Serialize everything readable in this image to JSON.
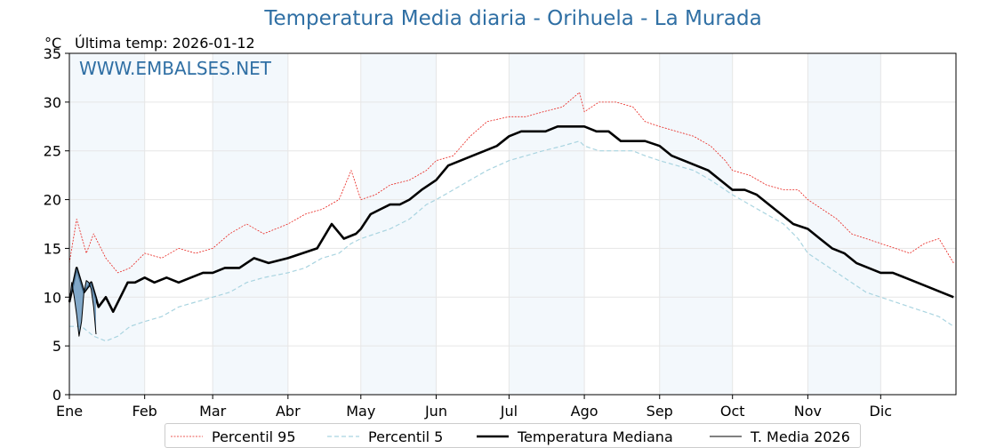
{
  "header": {
    "title": "Temperatura Media diaria - Orihuela - La Murada",
    "unit": "°C",
    "last_temp": "Última temp: 2026-01-12",
    "watermark": "WWW.EMBALSES.NET"
  },
  "chart_data": {
    "type": "line",
    "title": "Temperatura Media diaria - Orihuela - La Murada",
    "ylabel": "°C",
    "ylim": [
      0,
      35
    ],
    "y_ticks": [
      0,
      5,
      10,
      15,
      20,
      25,
      30,
      35
    ],
    "x_days": 365,
    "x_tick_day": [
      0,
      31,
      59,
      90,
      120,
      151,
      181,
      212,
      243,
      273,
      304,
      334
    ],
    "x_tick_labels": [
      "Ene",
      "Feb",
      "Mar",
      "Abr",
      "May",
      "Jun",
      "Jul",
      "Ago",
      "Sep",
      "Oct",
      "Nov",
      "Dic"
    ],
    "shaded_months": [
      "Ene",
      "Mar",
      "May",
      "Jul",
      "Sep",
      "Nov"
    ],
    "grid": true,
    "legend_position": "bottom",
    "series": [
      {
        "name": "Percentil 95",
        "color": "#e8221c",
        "style": "dotted",
        "x": [
          0,
          3,
          7,
          10,
          15,
          20,
          25,
          31,
          38,
          45,
          52,
          59,
          66,
          73,
          80,
          90,
          97,
          104,
          111,
          116,
          120,
          126,
          132,
          140,
          147,
          151,
          158,
          165,
          172,
          181,
          188,
          195,
          203,
          210,
          212,
          218,
          225,
          232,
          237,
          243,
          250,
          257,
          264,
          270,
          273,
          280,
          287,
          294,
          300,
          304,
          310,
          316,
          322,
          328,
          334,
          340,
          346,
          352,
          358,
          364
        ],
        "y": [
          13.5,
          18,
          14.5,
          16.5,
          14,
          12.5,
          13,
          14.5,
          14,
          15,
          14.5,
          15,
          16.5,
          17.5,
          16.5,
          17.5,
          18.5,
          19,
          20,
          23,
          20,
          20.5,
          21.5,
          22,
          23,
          24,
          24.5,
          26.5,
          28,
          28.5,
          28.5,
          29,
          29.5,
          31,
          29,
          30,
          30,
          29.5,
          28,
          27.5,
          27,
          26.5,
          25.5,
          24,
          23,
          22.5,
          21.5,
          21,
          21,
          20,
          19,
          18,
          16.5,
          16,
          15.5,
          15,
          14.5,
          15.5,
          16,
          13.5
        ]
      },
      {
        "name": "Percentil 5",
        "color": "#a9d4e0",
        "style": "dashed",
        "x": [
          0,
          5,
          10,
          15,
          20,
          25,
          31,
          38,
          45,
          52,
          59,
          66,
          73,
          80,
          90,
          97,
          104,
          111,
          116,
          120,
          126,
          132,
          140,
          147,
          151,
          158,
          165,
          172,
          181,
          188,
          195,
          203,
          210,
          212,
          218,
          225,
          232,
          237,
          243,
          250,
          257,
          264,
          270,
          273,
          280,
          287,
          294,
          300,
          304,
          310,
          316,
          322,
          328,
          334,
          340,
          346,
          352,
          358,
          364
        ],
        "y": [
          7,
          7,
          6,
          5.5,
          6,
          7,
          7.5,
          8,
          9,
          9.5,
          10,
          10.5,
          11.5,
          12,
          12.5,
          13,
          14,
          14.5,
          15.5,
          16,
          16.5,
          17,
          18,
          19.5,
          20,
          21,
          22,
          23,
          24,
          24.5,
          25,
          25.5,
          26,
          25.5,
          25,
          25,
          25,
          24.5,
          24,
          23.5,
          23,
          22,
          21,
          20.5,
          19.5,
          18.5,
          17.5,
          16,
          14.5,
          13.5,
          12.5,
          11.5,
          10.5,
          10,
          9.5,
          9,
          8.5,
          8,
          7
        ]
      },
      {
        "name": "Temperatura Mediana",
        "color": "#000000",
        "style": "solid-thick",
        "x": [
          0,
          3,
          6,
          9,
          12,
          15,
          18,
          21,
          24,
          27,
          31,
          35,
          40,
          45,
          50,
          55,
          59,
          64,
          70,
          76,
          82,
          90,
          96,
          102,
          108,
          113,
          118,
          120,
          124,
          128,
          132,
          136,
          140,
          145,
          151,
          156,
          161,
          166,
          171,
          176,
          181,
          186,
          191,
          196,
          201,
          206,
          212,
          217,
          222,
          227,
          232,
          237,
          243,
          248,
          253,
          258,
          263,
          268,
          273,
          278,
          283,
          288,
          293,
          298,
          304,
          309,
          314,
          319,
          324,
          329,
          334,
          339,
          344,
          349,
          354,
          359,
          364
        ],
        "y": [
          9.5,
          13,
          10.5,
          11.5,
          9,
          10,
          8.5,
          10,
          11.5,
          11.5,
          12,
          11.5,
          12,
          11.5,
          12,
          12.5,
          12.5,
          13,
          13,
          14,
          13.5,
          14,
          14.5,
          15,
          17.5,
          16,
          16.5,
          17,
          18.5,
          19,
          19.5,
          19.5,
          20,
          21,
          22,
          23.5,
          24,
          24.5,
          25,
          25.5,
          26.5,
          27,
          27,
          27,
          27.5,
          27.5,
          27.5,
          27,
          27,
          26,
          26,
          26,
          25.5,
          24.5,
          24,
          23.5,
          23,
          22,
          21,
          21,
          20.5,
          19.5,
          18.5,
          17.5,
          17,
          16,
          15,
          14.5,
          13.5,
          13,
          12.5,
          12.5,
          12,
          11.5,
          11,
          10.5,
          10
        ]
      },
      {
        "name": "T. Media 2026",
        "color": "#000000",
        "fill": "#5b8db8",
        "style": "solid-thin",
        "x": [
          0,
          1,
          2,
          3,
          4,
          5,
          6,
          7,
          8,
          9,
          10,
          11
        ],
        "y": [
          9.3,
          11.5,
          10.0,
          8.2,
          6.0,
          7.5,
          10.5,
          11.7,
          11.5,
          10.8,
          9.0,
          6.2
        ]
      }
    ]
  }
}
